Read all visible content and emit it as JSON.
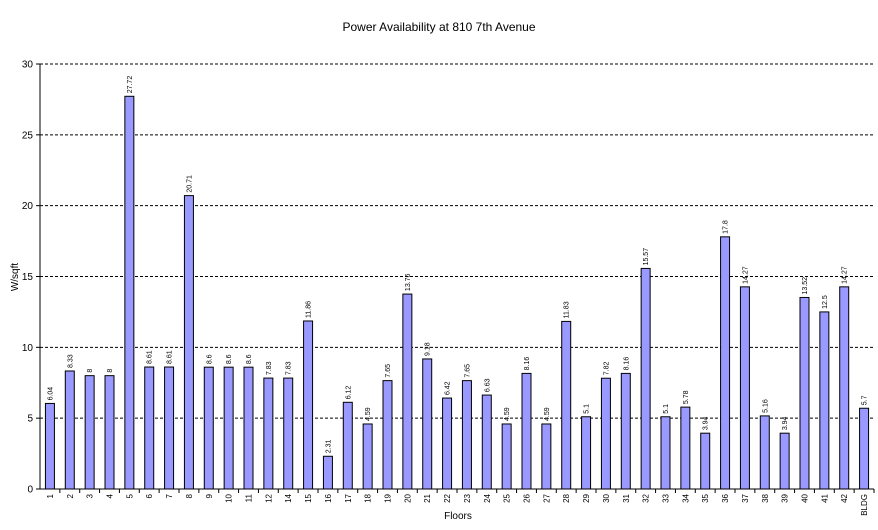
{
  "chart_data": {
    "type": "bar",
    "title": "Power Availability at 810 7th Avenue",
    "xlabel": "Floors",
    "ylabel": "W/sqft",
    "ylim": [
      0,
      30
    ],
    "yticks": [
      0,
      5,
      10,
      15,
      20,
      25,
      30
    ],
    "grid": true,
    "bar_color": "#9999ff",
    "categories": [
      "1",
      "2",
      "3",
      "4",
      "5",
      "6",
      "7",
      "8",
      "9",
      "10",
      "11",
      "12",
      "14",
      "15",
      "16",
      "17",
      "18",
      "19",
      "20",
      "21",
      "22",
      "23",
      "24",
      "25",
      "26",
      "27",
      "28",
      "29",
      "30",
      "31",
      "32",
      "33",
      "34",
      "35",
      "36",
      "37",
      "38",
      "39",
      "40",
      "41",
      "42",
      "BLDG"
    ],
    "values": [
      6.04,
      8.33,
      8,
      8,
      27.72,
      8.61,
      8.61,
      20.71,
      8.6,
      8.6,
      8.6,
      7.83,
      7.83,
      11.86,
      2.31,
      6.12,
      4.59,
      7.65,
      13.76,
      9.18,
      6.42,
      7.65,
      6.63,
      4.59,
      8.16,
      4.59,
      11.83,
      5.1,
      7.82,
      8.16,
      15.57,
      5.1,
      5.78,
      3.94,
      17.8,
      14.27,
      5.16,
      3.94,
      13.52,
      12.5,
      14.27,
      5.7
    ],
    "data_labels": [
      "6.04",
      "8.33",
      "8",
      "8",
      "27.72",
      "8.61",
      "8.61",
      "20.71",
      "8.6",
      "8.6",
      "8.6",
      "7.83",
      "7.83",
      "11.86",
      "2.31",
      "6.12",
      "4.59",
      "7.65",
      "13.76",
      "9.18",
      "6.42",
      "7.65",
      "6.63",
      "4.59",
      "8.16",
      "4.59",
      "11.83",
      "5.1",
      "7.82",
      "8.16",
      "15.57",
      "5.1",
      "5.78",
      "3.94",
      "17.8",
      "14.27",
      "5.16",
      "3.94",
      "13.52",
      "12.5",
      "14.27",
      "5.7"
    ]
  }
}
